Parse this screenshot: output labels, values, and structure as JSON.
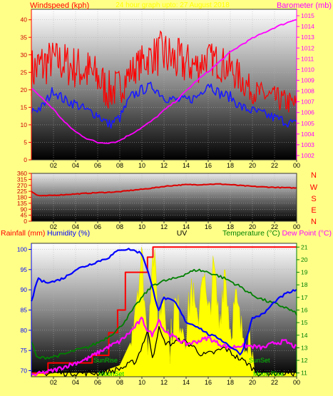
{
  "colors": {
    "background": "#ffff88",
    "windspeed": "#ff0000",
    "windgust": "#ff0000",
    "barometer": "#ff00ff",
    "winddir": "#dd0000",
    "rainfall": "#ff0000",
    "humidity": "#0000ff",
    "temperature": "#008000",
    "dewpoint": "#ff00ff",
    "uv": "#ffff00",
    "solar": "#000000",
    "sun_text": "#00cc00",
    "moon_text": "#00cc00"
  },
  "panel1": {
    "label_left": "Windspeed (kph)",
    "label_center": "24 hour graph upto: 27 August 2018",
    "label_right": "Barometer (mb)"
  },
  "panel2": {
    "compass": [
      "N",
      "W",
      "S",
      "E",
      "N"
    ]
  },
  "panel3": {
    "label_rain": "Rainfall (mm)",
    "label_hum": "Humidity (%)",
    "label_uv": "UV",
    "label_temp": "Temperature (°C)",
    "label_dew": "Dew Point (°C)",
    "sunrise_label": "SunRise",
    "moonset_label": "MoonSet",
    "sunset_label": "SunSet",
    "moonrise_label": "Moon Rise"
  },
  "chart_data": [
    {
      "type": "line",
      "title": "24 hour graph upto: 27 August 2018",
      "x_ticks": [
        "02",
        "04",
        "06",
        "08",
        "10",
        "12",
        "14",
        "16",
        "18",
        "20",
        "22",
        "00"
      ],
      "y_left_label": "Windspeed (kph)",
      "y_left_ticks": [
        0,
        5,
        10,
        15,
        20,
        25,
        30,
        35,
        40
      ],
      "y_left_range": [
        0,
        43
      ],
      "y_right_label": "Barometer (mb)",
      "y_right_ticks": [
        1002,
        1003,
        1004,
        1005,
        1006,
        1007,
        1008,
        1009,
        1010,
        1011,
        1012,
        1013,
        1014,
        1015
      ],
      "y_right_range": [
        1001.6,
        1015.6
      ],
      "series": [
        {
          "name": "Barometer (mb)",
          "axis": "right",
          "x": [
            0,
            1,
            2,
            3,
            4,
            5,
            6,
            7,
            7.8,
            9,
            10,
            11,
            12,
            13,
            14,
            15,
            16,
            17,
            18,
            19,
            20,
            21,
            22,
            23,
            24
          ],
          "values": [
            1008.3,
            1007.3,
            1006.3,
            1005.1,
            1004.2,
            1003.6,
            1003.2,
            1003.2,
            1003.3,
            1004.0,
            1004.6,
            1005.3,
            1006.2,
            1007.0,
            1008.0,
            1009.0,
            1009.8,
            1010.7,
            1011.6,
            1012.3,
            1012.9,
            1013.4,
            1013.9,
            1014.3,
            1014.7
          ]
        },
        {
          "name": "Windspeed (kph)",
          "axis": "left",
          "x": [
            0,
            1,
            2,
            3,
            4,
            5,
            6,
            7,
            8,
            9,
            10,
            11,
            12,
            13,
            14,
            15,
            16,
            17,
            18,
            19,
            20,
            21,
            22,
            23,
            24
          ],
          "values": [
            14,
            15,
            20,
            17,
            16,
            14,
            13,
            10,
            12,
            18,
            20,
            21,
            18,
            17,
            17,
            18,
            22,
            19,
            18,
            15,
            14,
            13,
            12,
            11,
            10
          ]
        },
        {
          "name": "Wind gust (kph)",
          "axis": "left",
          "x": [
            0,
            1,
            2,
            3,
            4,
            5,
            6,
            7,
            8,
            9,
            10,
            11,
            12,
            13,
            14,
            15,
            16,
            17,
            18,
            19,
            20,
            21,
            22,
            23,
            24
          ],
          "values": [
            28,
            30,
            31,
            30,
            29,
            28,
            26,
            22,
            23,
            27,
            30,
            32,
            33,
            31,
            30,
            29,
            31,
            30,
            28,
            25,
            21,
            20,
            19,
            18,
            17
          ]
        }
      ]
    },
    {
      "type": "line",
      "x_ticks": [
        "02",
        "04",
        "06",
        "08",
        "10",
        "12",
        "14",
        "16",
        "18",
        "20",
        "22",
        "00"
      ],
      "y_ticks": [
        0,
        45,
        90,
        135,
        180,
        225,
        270,
        315,
        360
      ],
      "y_range": [
        0,
        360
      ],
      "compass": [
        "N",
        "W",
        "S",
        "E",
        "N"
      ],
      "series": [
        {
          "name": "Wind direction (°)",
          "x": [
            0,
            0.5,
            1,
            2,
            3,
            4,
            5,
            6,
            7,
            8,
            9,
            10,
            11,
            12,
            13,
            14,
            15,
            16,
            17,
            18,
            19,
            20,
            21,
            22,
            23,
            24
          ],
          "values": [
            225,
            195,
            190,
            195,
            200,
            205,
            210,
            215,
            218,
            222,
            232,
            240,
            250,
            262,
            270,
            275,
            275,
            278,
            280,
            275,
            268,
            262,
            258,
            255,
            252,
            250
          ]
        }
      ]
    },
    {
      "type": "line",
      "x_ticks": [
        "02",
        "04",
        "06",
        "08",
        "10",
        "12",
        "14",
        "16",
        "18",
        "20",
        "22",
        "00"
      ],
      "y_left_label": "Humidity (%)",
      "y_left_ticks": [
        70,
        75,
        80,
        85,
        90,
        95,
        100
      ],
      "y_left_range": [
        68.5,
        101.5
      ],
      "y_right_label": "Temperature (°C)",
      "y_right_ticks": [
        11,
        12,
        13,
        14,
        15,
        16,
        17,
        18,
        19,
        20,
        21
      ],
      "y_right_range": [
        10.7,
        21.3
      ],
      "labels": [
        "Rainfall (mm)",
        "Humidity (%)",
        "UV",
        "Temperature (°C)",
        "Dew Point (°C)"
      ],
      "annotations": [
        "SunRise",
        "MoonSet",
        "SunSet",
        "Moon Rise"
      ],
      "series": [
        {
          "name": "Humidity (%)",
          "axis": "left",
          "x": [
            0,
            0.3,
            0.6,
            1,
            2,
            3,
            4,
            5,
            6,
            7,
            8,
            9,
            10,
            10.5,
            11,
            11.5,
            12,
            13,
            14,
            15,
            16,
            17,
            18,
            19,
            20,
            21,
            22,
            23,
            24
          ],
          "values": [
            87,
            90,
            93,
            92,
            92,
            93,
            95,
            96,
            97,
            98,
            100,
            100,
            99,
            95,
            90,
            85,
            88,
            87,
            82,
            81,
            79,
            78,
            76,
            74,
            83,
            84,
            87,
            89,
            90
          ]
        },
        {
          "name": "Temperature (°C)",
          "axis": "right",
          "x": [
            0,
            0.5,
            1,
            2,
            3,
            4,
            5,
            6,
            7,
            8,
            9,
            10,
            11,
            12,
            13,
            14,
            15,
            16,
            17,
            18,
            19,
            20,
            21,
            22,
            23,
            24
          ],
          "values": [
            13.5,
            12.2,
            12.2,
            12.3,
            12.5,
            12.8,
            13.0,
            13.4,
            13.9,
            14.6,
            15.8,
            17.0,
            18.0,
            18.3,
            18.5,
            18.9,
            19.2,
            19.0,
            18.7,
            18.3,
            17.8,
            17.2,
            16.8,
            16.5,
            16.2,
            15.7
          ]
        },
        {
          "name": "Dew Point (°C)",
          "axis": "right",
          "x": [
            0,
            1,
            2,
            3,
            4,
            5,
            6,
            7,
            8,
            9,
            10,
            10.5,
            11,
            11.5,
            12,
            13,
            14,
            15,
            16,
            17,
            18,
            19,
            20,
            21,
            22,
            23,
            24
          ],
          "values": [
            10.8,
            11.0,
            11.2,
            11.5,
            11.8,
            12.1,
            12.6,
            13.1,
            13.5,
            14.3,
            15.3,
            14.4,
            14.0,
            15.3,
            14.4,
            13.8,
            13.3,
            13.5,
            13.8,
            13.3,
            13.0,
            13.2,
            13.1,
            13.0,
            13.4,
            13.5,
            13.0
          ]
        },
        {
          "name": "Rainfall (mm)",
          "axis": "right",
          "x": [
            0,
            1.5,
            1.5,
            5.5,
            5.5,
            7,
            7,
            7.8,
            7.8,
            8.5,
            8.5,
            10.5,
            10.5,
            11,
            11,
            24
          ],
          "values": [
            11,
            11,
            11.8,
            11.8,
            12.4,
            12.4,
            14.2,
            14.2,
            16.0,
            16.0,
            19.0,
            19.0,
            20.2,
            20.2,
            21.0,
            21.0
          ]
        },
        {
          "name": "UV",
          "axis": "right",
          "x": [
            0,
            6.5,
            7,
            8,
            9,
            10,
            10.5,
            11,
            11.5,
            12,
            12.5,
            13,
            14,
            14.5,
            15,
            15.5,
            16,
            16.5,
            17,
            17.5,
            18,
            18.5,
            19,
            19.5,
            20,
            20.2,
            24
          ],
          "values": [
            11,
            11,
            11.3,
            11.6,
            13.5,
            19.8,
            12.6,
            20.8,
            14.5,
            17.0,
            12.2,
            15.8,
            13.6,
            17.5,
            13.8,
            19.2,
            14.4,
            18.8,
            14.2,
            19.0,
            13.8,
            16.2,
            13.6,
            13.4,
            13.0,
            11,
            11
          ]
        },
        {
          "name": "Solar",
          "axis": "right",
          "x": [
            0,
            6.5,
            7.5,
            8.5,
            9.5,
            10.5,
            11,
            11.5,
            12,
            12.5,
            13.5,
            14.5,
            15.5,
            16.5,
            17.5,
            18.5,
            19.5,
            20.5,
            24
          ],
          "values": [
            11,
            11,
            11.2,
            11.5,
            12.0,
            14.3,
            12.2,
            14.6,
            13.5,
            13.3,
            13.6,
            13.2,
            12.4,
            12.6,
            13.0,
            12.3,
            11.8,
            11,
            11
          ]
        }
      ]
    }
  ]
}
